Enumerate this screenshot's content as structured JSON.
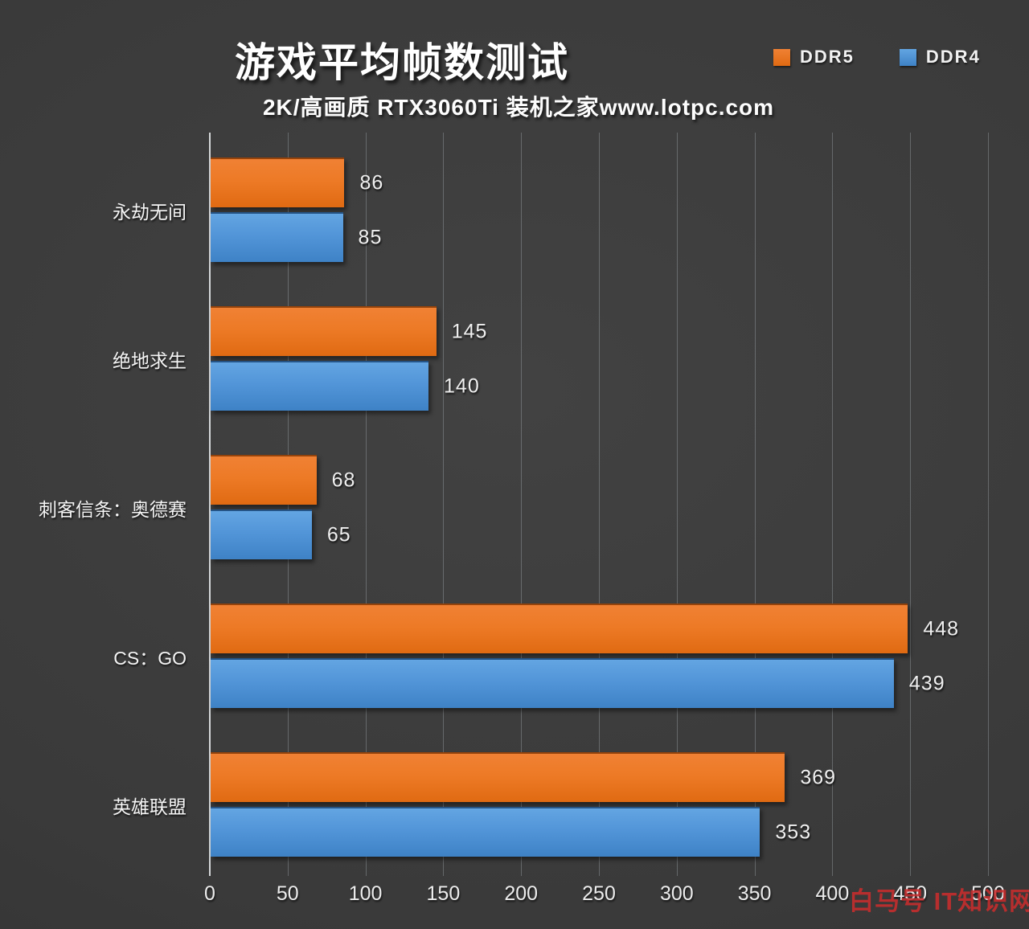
{
  "page": {
    "background": "#3a3a3a"
  },
  "header": {
    "title": "游戏平均帧数测试",
    "subtitle": "2K/高画质 RTX3060Ti 装机之家www.lotpc.com"
  },
  "legend": {
    "items": [
      {
        "label": "DDR5",
        "color": "#E8731D"
      },
      {
        "label": "DDR4",
        "color": "#5295D8"
      }
    ]
  },
  "watermark": {
    "text": "白马号 IT知识网！",
    "color": "#C82C2C"
  },
  "chart_data": {
    "type": "bar",
    "orientation": "horizontal",
    "title": "游戏平均帧数测试",
    "subtitle": "2K/高画质 RTX3060Ti 装机之家www.lotpc.com",
    "categories": [
      "永劫无间",
      "绝地求生",
      "刺客信条：奥德赛",
      "CS：GO",
      "英雄联盟"
    ],
    "series": [
      {
        "name": "DDR5",
        "color": "#E8731D",
        "values": [
          86,
          145,
          68,
          448,
          369
        ]
      },
      {
        "name": "DDR4",
        "color": "#5295D8",
        "values": [
          85,
          140,
          65,
          439,
          353
        ]
      }
    ],
    "xlabel": "",
    "ylabel": "",
    "xlim": [
      0,
      500
    ],
    "xticks": [
      0,
      50,
      100,
      150,
      200,
      250,
      300,
      350,
      400,
      450,
      500
    ],
    "grid": true,
    "gridline_color": "#8f979b",
    "legend_position": "top-right",
    "value_labels": true
  }
}
